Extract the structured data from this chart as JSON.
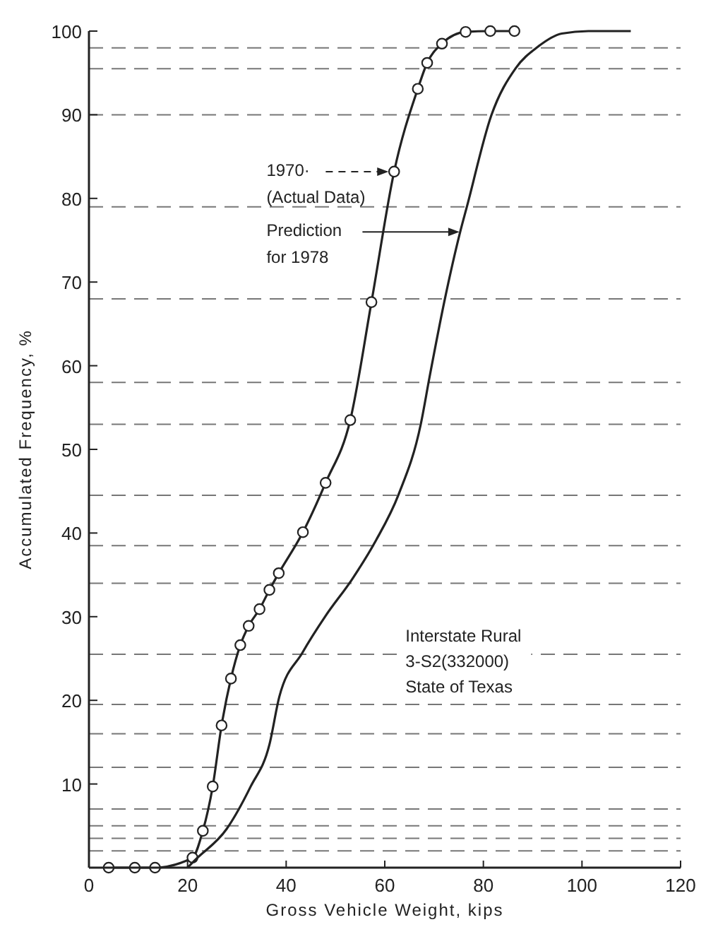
{
  "chart_data": {
    "type": "line",
    "xlabel": "Gross Vehicle Weight, kips",
    "ylabel": "Accumulated Frequency, %",
    "xlim": [
      0,
      120
    ],
    "ylim": [
      0,
      100
    ],
    "xticks": [
      0,
      20,
      40,
      60,
      80,
      100,
      120
    ],
    "yticks": [
      10,
      20,
      30,
      40,
      50,
      60,
      70,
      80,
      90,
      100
    ],
    "grid": false,
    "line_style": "solid",
    "series": [
      {
        "color": "#222222",
        "marker": "circle",
        "x": [
          4,
          9.3,
          13.4,
          21,
          23.1,
          25.1,
          26.9,
          28.8,
          30.7,
          32.4,
          34.6,
          36.6,
          38.5,
          43.4,
          48,
          53,
          57.3,
          61.9,
          66.7,
          68.6,
          71.6,
          76.4,
          81.4,
          86.3
        ],
        "values": [
          0,
          0,
          0,
          1.2,
          4.4,
          9.7,
          17,
          22.6,
          26.6,
          28.9,
          30.9,
          33.2,
          35.2,
          40.1,
          46,
          53.5,
          67.6,
          83.2,
          93.1,
          96.2,
          98.5,
          99.9,
          100,
          100
        ]
      },
      {
        "color": "#222222",
        "marker": "none",
        "x": [
          20,
          21.5,
          27.9,
          32.8,
          36.6,
          38.6,
          43.3,
          48,
          53.4,
          58.1,
          62.8,
          67.3,
          69.1,
          72.2,
          75.3,
          76.7,
          81.6,
          86.6,
          91,
          95.9,
          101.3,
          109.9
        ],
        "values": [
          0,
          0.9,
          4.6,
          9.7,
          14.7,
          20.4,
          25.7,
          30.1,
          34.5,
          39,
          44.6,
          53,
          58.7,
          68,
          76,
          79.1,
          89.9,
          95.6,
          98.1,
          99.7,
          100,
          100
        ]
      }
    ],
    "ref_lines": [
      {
        "axis": "y",
        "value": 98,
        "line_style": "dashed"
      },
      {
        "axis": "y",
        "value": 95.5,
        "line_style": "dashed"
      },
      {
        "axis": "y",
        "value": 90,
        "line_style": "dashed"
      },
      {
        "axis": "y",
        "value": 79,
        "line_style": "dashed"
      },
      {
        "axis": "y",
        "value": 68,
        "line_style": "dashed"
      },
      {
        "axis": "y",
        "value": 58,
        "line_style": "dashed"
      },
      {
        "axis": "y",
        "value": 53,
        "line_style": "dashed"
      },
      {
        "axis": "y",
        "value": 44.5,
        "line_style": "dashed"
      },
      {
        "axis": "y",
        "value": 38.5,
        "line_style": "dashed"
      },
      {
        "axis": "y",
        "value": 34,
        "line_style": "dashed"
      },
      {
        "axis": "y",
        "value": 25.5,
        "line_style": "dashed"
      },
      {
        "axis": "y",
        "value": 19.5,
        "line_style": "dashed"
      },
      {
        "axis": "y",
        "value": 16,
        "line_style": "dashed"
      },
      {
        "axis": "y",
        "value": 12,
        "line_style": "dashed"
      },
      {
        "axis": "y",
        "value": 7,
        "line_style": "dashed"
      },
      {
        "axis": "y",
        "value": 5,
        "line_style": "dashed"
      },
      {
        "axis": "y",
        "value": 3.5,
        "line_style": "dashed"
      },
      {
        "axis": "y",
        "value": 2,
        "line_style": "dashed"
      }
    ],
    "annotations": [
      {
        "text": "1970·\n(Actual Data)",
        "x": 61.9,
        "y": 83.2
      },
      {
        "text": "Prediction\nfor 1978",
        "x": 75.3,
        "y": 76
      },
      "Interstate Rural\n3-S2(332000)\nState of Texas"
    ]
  }
}
